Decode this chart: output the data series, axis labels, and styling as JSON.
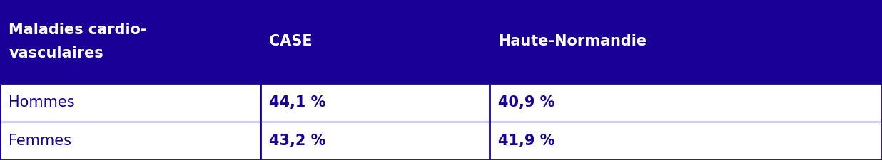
{
  "header_bg": "#1a0096",
  "header_text_color": "#ffffff",
  "body_bg": "#ffffff",
  "body_text_color": "#1a0096",
  "border_color": "#1a0096",
  "col1_header": "Maladies cardio-\nvasculaires",
  "col2_header": "CASE",
  "col3_header": "Haute-Normandie",
  "rows": [
    [
      "Hommes",
      "44,1 %",
      "40,9 %"
    ],
    [
      "Femmes",
      "43,2 %",
      "41,9 %"
    ]
  ],
  "header_fontsize": 15,
  "body_fontsize": 15,
  "figsize": [
    12.36,
    2.25
  ]
}
